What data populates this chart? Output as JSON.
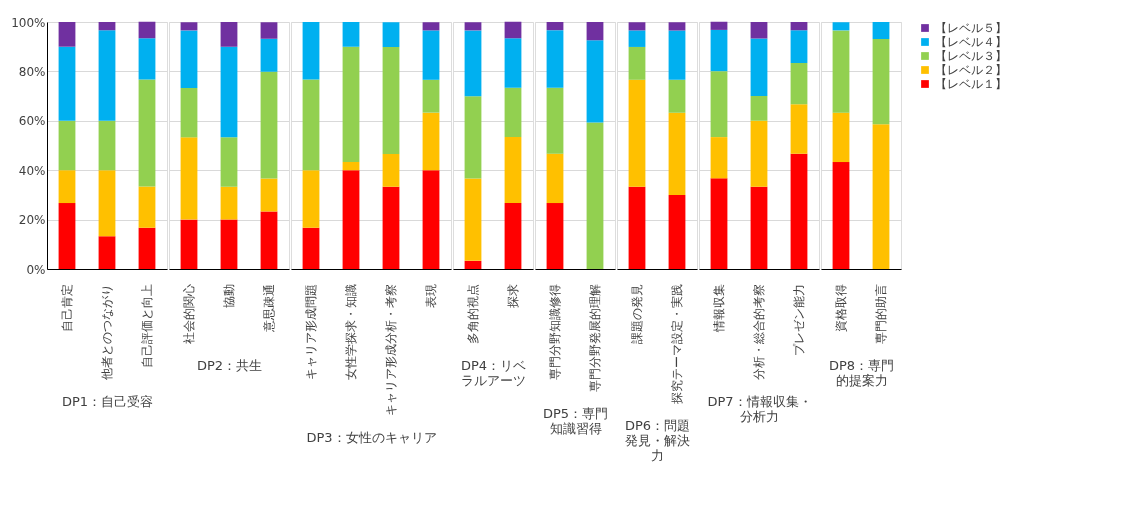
{
  "chart_data": [
    {
      "type": "bar",
      "stacked": true,
      "xlabel": "DP1：自己受容",
      "categories": [
        "自己肯定",
        "他者とのつながり",
        "自己評価と向上"
      ],
      "ylim": [
        0,
        100
      ],
      "yticks": [
        {
          "value": 0,
          "label": "0%"
        },
        {
          "value": 20,
          "label": "20%"
        },
        {
          "value": 40,
          "label": "40%"
        },
        {
          "value": 60,
          "label": "60%"
        },
        {
          "value": 80,
          "label": "80%"
        },
        {
          "value": 100,
          "label": "100%"
        }
      ],
      "grid": "y",
      "series": [
        {
          "color": "#ff0000",
          "values": [
            26.7,
            13.3,
            16.7
          ]
        },
        {
          "color": "#ffc000",
          "values": [
            13.3,
            26.7,
            16.7
          ]
        },
        {
          "color": "#92d050",
          "values": [
            20,
            20,
            43.3
          ]
        },
        {
          "color": "#00b0f0",
          "values": [
            30,
            36.7,
            16.7
          ]
        },
        {
          "color": "#7030a0",
          "values": [
            10,
            3.3,
            6.7
          ]
        }
      ]
    },
    {
      "type": "bar",
      "stacked": true,
      "xlabel": "DP2：共生",
      "categories": [
        "社会的関心",
        "協動",
        "意思疎通"
      ],
      "ylim": [
        0,
        100
      ],
      "grid": "y",
      "tick_labels": "x",
      "series": [
        {
          "color": "#ff0000",
          "values": [
            20,
            20,
            23.3
          ]
        },
        {
          "color": "#ffc000",
          "values": [
            33.3,
            13.3,
            13.3
          ]
        },
        {
          "color": "#92d050",
          "values": [
            20,
            20,
            43.3
          ]
        },
        {
          "color": "#00b0f0",
          "values": [
            23.3,
            36.7,
            13.3
          ]
        },
        {
          "color": "#7030a0",
          "values": [
            3.3,
            10,
            6.7
          ]
        }
      ]
    },
    {
      "type": "bar",
      "stacked": true,
      "xlabel": "DP3：女性のキャリア",
      "categories": [
        "キャリア形成問題",
        "女性学探求・知識",
        "キャリア形成分析・考察",
        "表現"
      ],
      "ylim": [
        0,
        100
      ],
      "grid": "y",
      "tick_labels": "x",
      "series": [
        {
          "color": "#ff0000",
          "values": [
            16.7,
            40,
            33.3,
            40
          ]
        },
        {
          "color": "#ffc000",
          "values": [
            23.3,
            3.3,
            13.3,
            23.3
          ]
        },
        {
          "color": "#92d050",
          "values": [
            36.7,
            46.7,
            43.3,
            13.3
          ]
        },
        {
          "color": "#00b0f0",
          "values": [
            23.3,
            10,
            10,
            20
          ]
        },
        {
          "color": "#7030a0",
          "values": [
            0,
            0,
            0,
            3.3
          ]
        }
      ]
    },
    {
      "type": "bar",
      "stacked": true,
      "xlabel": "DP4：リベラルアーツ",
      "categories": [
        "多角的視点",
        "探求"
      ],
      "ylim": [
        0,
        100
      ],
      "grid": "y",
      "tick_labels": "x",
      "series": [
        {
          "color": "#ff0000",
          "values": [
            3.3,
            26.7
          ]
        },
        {
          "color": "#ffc000",
          "values": [
            33.3,
            26.7
          ]
        },
        {
          "color": "#92d050",
          "values": [
            33.3,
            20
          ]
        },
        {
          "color": "#00b0f0",
          "values": [
            26.7,
            20
          ]
        },
        {
          "color": "#7030a0",
          "values": [
            3.3,
            6.7
          ]
        }
      ]
    },
    {
      "type": "bar",
      "stacked": true,
      "xlabel": "DP5：専門知識習得",
      "categories": [
        "専門分野知識修得",
        "専門分野発展的理解"
      ],
      "ylim": [
        0,
        100
      ],
      "grid": "y",
      "tick_labels": "x",
      "series": [
        {
          "color": "#ff0000",
          "values": [
            26.7,
            0
          ]
        },
        {
          "color": "#ffc000",
          "values": [
            20,
            0
          ]
        },
        {
          "color": "#92d050",
          "values": [
            26.7,
            59.3
          ]
        },
        {
          "color": "#00b0f0",
          "values": [
            23.3,
            33.3
          ]
        },
        {
          "color": "#7030a0",
          "values": [
            3.3,
            7.4
          ]
        }
      ]
    },
    {
      "type": "bar",
      "stacked": true,
      "xlabel": "DP6：問題発見・解決力",
      "categories": [
        "課題の発見",
        "探究テーマ設定・実践"
      ],
      "ylim": [
        0,
        100
      ],
      "grid": "y",
      "tick_labels": "x",
      "series": [
        {
          "color": "#ff0000",
          "values": [
            33.3,
            30
          ]
        },
        {
          "color": "#ffc000",
          "values": [
            43.3,
            33.3
          ]
        },
        {
          "color": "#92d050",
          "values": [
            13.3,
            13.3
          ]
        },
        {
          "color": "#00b0f0",
          "values": [
            6.7,
            20
          ]
        },
        {
          "color": "#7030a0",
          "values": [
            3.3,
            3.3
          ]
        }
      ]
    },
    {
      "type": "bar",
      "stacked": true,
      "xlabel": "DP7：情報収集・分析力",
      "categories": [
        "情報収集",
        "分析・総合的考察",
        "プレゼン能力"
      ],
      "ylim": [
        0,
        100
      ],
      "grid": "y",
      "tick_labels": "x",
      "series": [
        {
          "color": "#ff0000",
          "values": [
            36.7,
            33.3,
            46.7
          ]
        },
        {
          "color": "#ffc000",
          "values": [
            16.7,
            26.7,
            20
          ]
        },
        {
          "color": "#92d050",
          "values": [
            26.7,
            10,
            16.7
          ]
        },
        {
          "color": "#00b0f0",
          "values": [
            16.7,
            23.3,
            13.3
          ]
        },
        {
          "color": "#7030a0",
          "values": [
            3.3,
            6.7,
            3.3
          ]
        }
      ]
    },
    {
      "type": "bar",
      "stacked": true,
      "xlabel": "DP8：専門的提案力",
      "categories": [
        "資格取得",
        "専門的助言"
      ],
      "ylim": [
        0,
        100
      ],
      "grid": "y",
      "legend": "right",
      "tick_labels": "x",
      "series": [
        {
          "name": "【レベル１】",
          "color": "#ff0000",
          "values": [
            43.3,
            0
          ]
        },
        {
          "name": "【レベル２】",
          "color": "#ffc000",
          "values": [
            20,
            58.6
          ]
        },
        {
          "name": "【レベル３】",
          "color": "#92d050",
          "values": [
            33.3,
            34.5
          ]
        },
        {
          "name": "【レベル４】",
          "color": "#00b0f0",
          "values": [
            3.3,
            6.9
          ]
        },
        {
          "name": "【レベル５】",
          "color": "#7030a0",
          "values": [
            0,
            0
          ]
        }
      ]
    }
  ]
}
